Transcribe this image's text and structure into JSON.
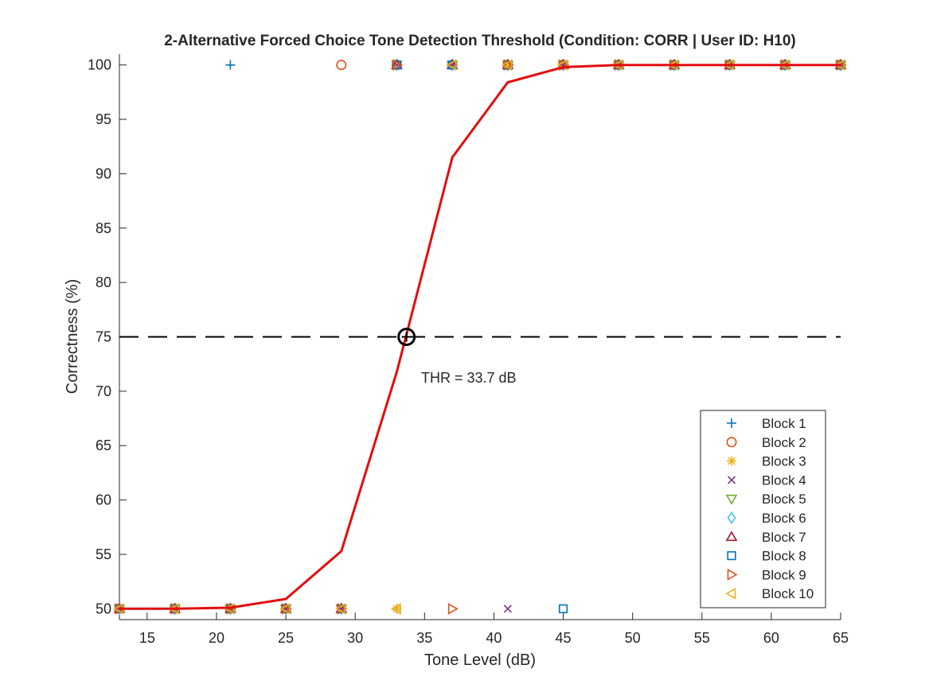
{
  "chart_data": {
    "type": "scatter",
    "title": "2-Alternative Forced Choice Tone Detection Threshold (Condition: CORR | User ID: H10)",
    "xlabel": "Tone Level (dB)",
    "ylabel": "Correctness (%)",
    "xlim": [
      13,
      65
    ],
    "ylim": [
      49,
      101
    ],
    "xticks": [
      15,
      20,
      25,
      30,
      35,
      40,
      45,
      50,
      55,
      60,
      65
    ],
    "yticks": [
      50,
      55,
      60,
      65,
      70,
      75,
      80,
      85,
      90,
      95,
      100
    ],
    "grid": false,
    "legend_position": "lower-right",
    "threshold_level": 75,
    "threshold_value": 33.7,
    "threshold_label": "THR = 33.7 dB",
    "fit": {
      "color": "#e30d0d",
      "x": [
        13,
        17,
        21,
        25,
        29,
        33,
        37,
        41,
        45,
        49,
        53,
        57,
        61,
        65
      ],
      "y": [
        50,
        50,
        50.1,
        50.9,
        55.3,
        71.8,
        91.5,
        98.4,
        99.8,
        100,
        100,
        100,
        100,
        100
      ]
    },
    "series": [
      {
        "name": "Block 1",
        "marker": "plus",
        "color": "#0072bd",
        "points": [
          [
            13,
            50
          ],
          [
            17,
            50
          ],
          [
            21,
            100
          ],
          [
            25,
            50
          ],
          [
            29,
            50
          ],
          [
            33,
            50
          ],
          [
            37,
            100
          ],
          [
            41,
            100
          ],
          [
            45,
            100
          ],
          [
            49,
            100
          ],
          [
            53,
            100
          ],
          [
            57,
            100
          ],
          [
            61,
            100
          ],
          [
            65,
            100
          ]
        ]
      },
      {
        "name": "Block 2",
        "marker": "circle",
        "color": "#d95319",
        "points": [
          [
            13,
            50
          ],
          [
            17,
            50
          ],
          [
            21,
            50
          ],
          [
            25,
            50
          ],
          [
            29,
            100
          ],
          [
            33,
            100
          ],
          [
            37,
            100
          ],
          [
            41,
            100
          ],
          [
            45,
            100
          ],
          [
            49,
            100
          ],
          [
            53,
            100
          ],
          [
            57,
            100
          ],
          [
            61,
            100
          ],
          [
            65,
            100
          ]
        ]
      },
      {
        "name": "Block 3",
        "marker": "asterisk",
        "color": "#edb120",
        "points": [
          [
            13,
            50
          ],
          [
            17,
            50
          ],
          [
            21,
            50
          ],
          [
            25,
            50
          ],
          [
            29,
            50
          ],
          [
            33,
            50
          ],
          [
            37,
            100
          ],
          [
            41,
            100
          ],
          [
            45,
            100
          ],
          [
            49,
            100
          ],
          [
            53,
            100
          ],
          [
            57,
            100
          ],
          [
            61,
            100
          ],
          [
            65,
            100
          ]
        ]
      },
      {
        "name": "Block 4",
        "marker": "cross",
        "color": "#7e2f8e",
        "points": [
          [
            13,
            50
          ],
          [
            17,
            50
          ],
          [
            21,
            50
          ],
          [
            25,
            50
          ],
          [
            29,
            50
          ],
          [
            33,
            100
          ],
          [
            37,
            100
          ],
          [
            41,
            50
          ],
          [
            45,
            100
          ],
          [
            49,
            100
          ],
          [
            53,
            100
          ],
          [
            57,
            100
          ],
          [
            61,
            100
          ],
          [
            65,
            100
          ]
        ]
      },
      {
        "name": "Block 5",
        "marker": "triangle-down",
        "color": "#77ac30",
        "points": [
          [
            13,
            50
          ],
          [
            17,
            50
          ],
          [
            21,
            50
          ],
          [
            25,
            50
          ],
          [
            29,
            50
          ],
          [
            33,
            100
          ],
          [
            37,
            100
          ],
          [
            41,
            100
          ],
          [
            45,
            100
          ],
          [
            49,
            100
          ],
          [
            53,
            100
          ],
          [
            57,
            100
          ],
          [
            61,
            100
          ],
          [
            65,
            100
          ]
        ]
      },
      {
        "name": "Block 6",
        "marker": "diamond",
        "color": "#4dbeee",
        "points": [
          [
            13,
            50
          ],
          [
            17,
            50
          ],
          [
            21,
            50
          ],
          [
            25,
            50
          ],
          [
            29,
            50
          ],
          [
            33,
            100
          ],
          [
            37,
            100
          ],
          [
            41,
            100
          ],
          [
            45,
            100
          ],
          [
            49,
            100
          ],
          [
            53,
            100
          ],
          [
            57,
            100
          ],
          [
            61,
            100
          ],
          [
            65,
            100
          ]
        ]
      },
      {
        "name": "Block 7",
        "marker": "triangle-up",
        "color": "#a2142f",
        "points": [
          [
            13,
            50
          ],
          [
            17,
            50
          ],
          [
            21,
            50
          ],
          [
            25,
            50
          ],
          [
            29,
            50
          ],
          [
            33,
            100
          ],
          [
            37,
            100
          ],
          [
            41,
            100
          ],
          [
            45,
            100
          ],
          [
            49,
            100
          ],
          [
            53,
            100
          ],
          [
            57,
            100
          ],
          [
            61,
            100
          ],
          [
            65,
            100
          ]
        ]
      },
      {
        "name": "Block 8",
        "marker": "square",
        "color": "#0072bd",
        "points": [
          [
            13,
            50
          ],
          [
            17,
            50
          ],
          [
            21,
            50
          ],
          [
            25,
            50
          ],
          [
            29,
            50
          ],
          [
            33,
            100
          ],
          [
            37,
            100
          ],
          [
            41,
            100
          ],
          [
            45,
            50
          ],
          [
            49,
            100
          ],
          [
            53,
            100
          ],
          [
            57,
            100
          ],
          [
            61,
            100
          ],
          [
            65,
            100
          ]
        ]
      },
      {
        "name": "Block 9",
        "marker": "triangle-right",
        "color": "#d95319",
        "points": [
          [
            13,
            50
          ],
          [
            17,
            50
          ],
          [
            21,
            50
          ],
          [
            25,
            50
          ],
          [
            29,
            50
          ],
          [
            33,
            100
          ],
          [
            37,
            50
          ],
          [
            41,
            100
          ],
          [
            45,
            100
          ],
          [
            49,
            100
          ],
          [
            53,
            100
          ],
          [
            57,
            100
          ],
          [
            61,
            100
          ],
          [
            65,
            100
          ]
        ]
      },
      {
        "name": "Block 10",
        "marker": "triangle-left",
        "color": "#edb120",
        "points": [
          [
            13,
            50
          ],
          [
            17,
            50
          ],
          [
            21,
            50
          ],
          [
            25,
            50
          ],
          [
            29,
            50
          ],
          [
            33,
            50
          ],
          [
            37,
            100
          ],
          [
            41,
            100
          ],
          [
            45,
            100
          ],
          [
            49,
            100
          ],
          [
            53,
            100
          ],
          [
            57,
            100
          ],
          [
            61,
            100
          ],
          [
            65,
            100
          ]
        ]
      }
    ]
  }
}
